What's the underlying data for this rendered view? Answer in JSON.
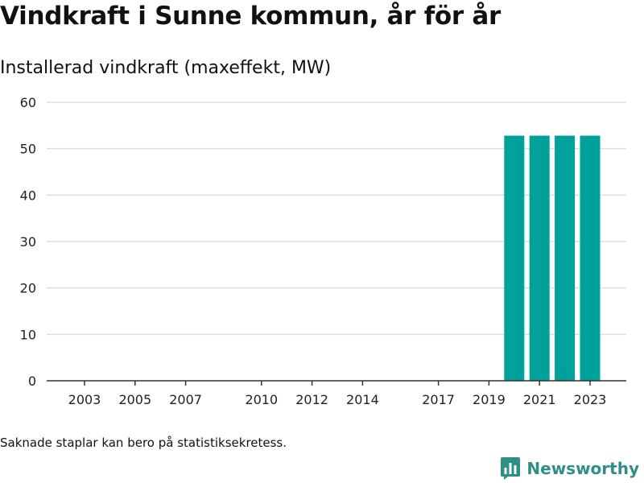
{
  "header": {
    "title": "Vindkraft i Sunne kommun, år för år",
    "subtitle": "Installerad vindkraft (maxeffekt, MW)"
  },
  "footer": {
    "footnote": "Saknade staplar kan bero på statistiksekretess.",
    "brand": "Newsworthy"
  },
  "colors": {
    "bar": "#00a19a",
    "grid": "#dddddd",
    "axis": "#333333",
    "brand": "#2f8f86"
  },
  "chart_data": {
    "type": "bar",
    "title": "Vindkraft i Sunne kommun, år för år",
    "subtitle": "Installerad vindkraft (maxeffekt, MW)",
    "categories": [
      "2003",
      "2004",
      "2005",
      "2006",
      "2007",
      "2008",
      "2009",
      "2010",
      "2011",
      "2012",
      "2013",
      "2014",
      "2015",
      "2016",
      "2017",
      "2018",
      "2019",
      "2020",
      "2021",
      "2022",
      "2023"
    ],
    "values": [
      0,
      0,
      0,
      0,
      0,
      0,
      0,
      0,
      0,
      0,
      0,
      0,
      0,
      0,
      0,
      0,
      0,
      52.8,
      52.8,
      52.8,
      52.8
    ],
    "x_tick_labels": [
      "2003",
      "2005",
      "2007",
      "2010",
      "2012",
      "2014",
      "2017",
      "2019",
      "2021",
      "2023"
    ],
    "y_ticks": [
      0,
      10,
      20,
      30,
      40,
      50,
      60
    ],
    "ylim": [
      0,
      60
    ],
    "xlabel": "",
    "ylabel": "",
    "grid": true,
    "legend": "none"
  }
}
